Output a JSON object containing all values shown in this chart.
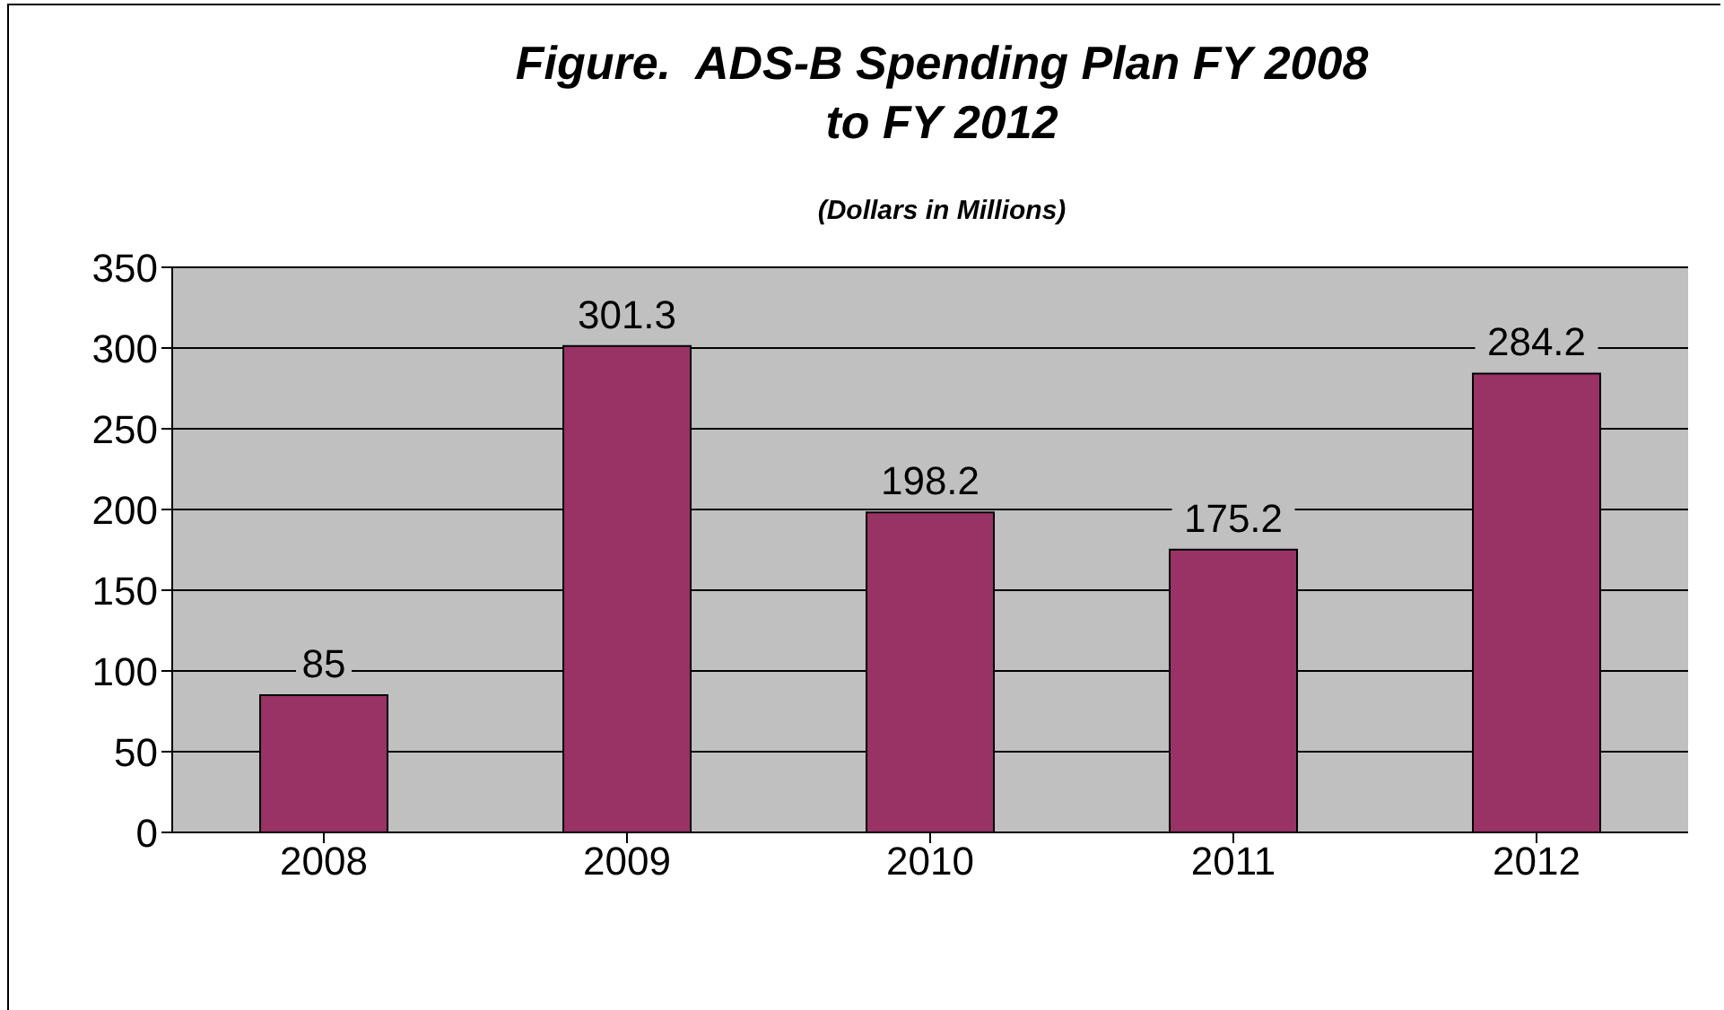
{
  "chart_data": {
    "type": "bar",
    "title": "Figure.  ADS-B Spending Plan FY 2008 to FY 2012",
    "subtitle": "(Dollars in Millions)",
    "categories": [
      "2008",
      "2009",
      "2010",
      "2011",
      "2012"
    ],
    "values": [
      85,
      301.3,
      198.2,
      175.2,
      284.2
    ],
    "color": "#993366",
    "ylim": [
      0,
      350
    ],
    "yticks": [
      0,
      50,
      100,
      150,
      200,
      250,
      300,
      350
    ],
    "grid": "y",
    "data_labels": true,
    "legend": false
  }
}
